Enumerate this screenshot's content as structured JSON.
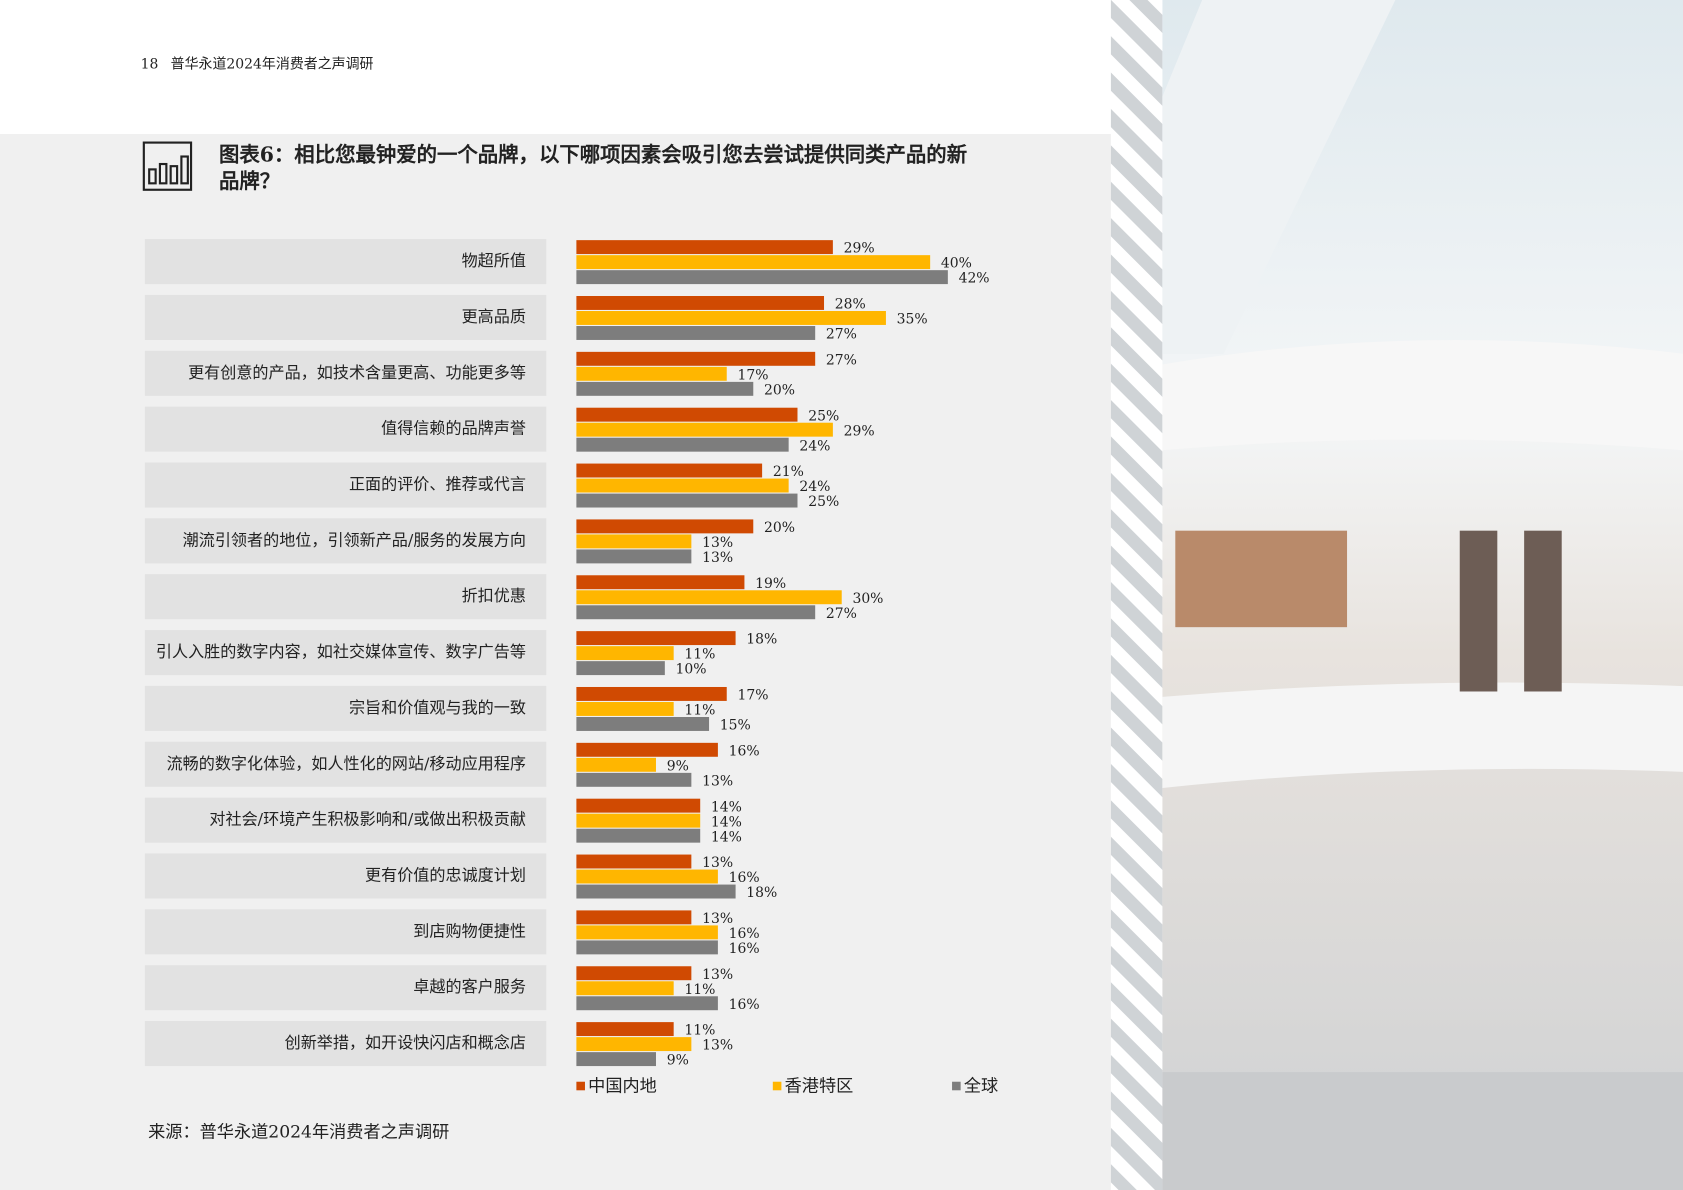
{
  "header": {
    "page_number": "18",
    "title": "普华永道2024年消费者之声调研"
  },
  "chart_data": {
    "type": "bar",
    "orientation": "horizontal",
    "title": "图表6：相比您最钟爱的一个品牌，以下哪项因素会吸引您去尝试提供同类产品的新品牌？",
    "categories": [
      "物超所值",
      "更高品质",
      "更有创意的产品，如技术含量更高、功能更多等",
      "值得信赖的品牌声誉",
      "正面的评价、推荐或代言",
      "潮流引领者的地位，引领新产品/服务的发展方向",
      "折扣优惠",
      "引人入胜的数字内容，如社交媒体宣传、数字广告等",
      "宗旨和价值观与我的一致",
      "流畅的数字化体验，如人性化的网站/移动应用程序",
      "对社会/环境产生积极影响和/或做出积极贡献",
      "更有价值的忠诚度计划",
      "到店购物便捷性",
      "卓越的客户服务",
      "创新举措，如开设快闪店和概念店"
    ],
    "series": [
      {
        "name": "中国内地",
        "color": "#d04a02",
        "values": [
          29,
          28,
          27,
          25,
          21,
          20,
          19,
          18,
          17,
          16,
          14,
          13,
          13,
          13,
          11
        ],
        "value_labels": [
          "29%",
          "28%",
          "27%",
          "25%",
          "21%",
          "20%",
          "19%",
          "18%",
          "17%",
          "16%",
          "14%",
          "13%",
          "13%",
          "13%",
          "11%"
        ]
      },
      {
        "name": "香港特区",
        "color": "#ffb600",
        "values": [
          40,
          35,
          17,
          29,
          24,
          13,
          30,
          11,
          11,
          9,
          14,
          16,
          16,
          11,
          13
        ],
        "value_labels": [
          "40%",
          "35%",
          "17%",
          "29%",
          "24%",
          "13%",
          "30%",
          "11%",
          "11%",
          "9%",
          "14%",
          "16%",
          "16%",
          "11%",
          "13%"
        ]
      },
      {
        "name": "全球",
        "color": "#7d7d7d",
        "values": [
          42,
          27,
          20,
          24,
          25,
          13,
          27,
          10,
          15,
          13,
          14,
          18,
          16,
          16,
          9
        ],
        "value_labels": [
          "42%",
          "27%",
          "20%",
          "24%",
          "25%",
          "13%",
          "27%",
          "10%",
          "15%",
          "13%",
          "14%",
          "18%",
          "16%",
          "16%",
          "9%"
        ]
      }
    ]
  },
  "source": "来源：普华永道2024年消费者之声调研"
}
